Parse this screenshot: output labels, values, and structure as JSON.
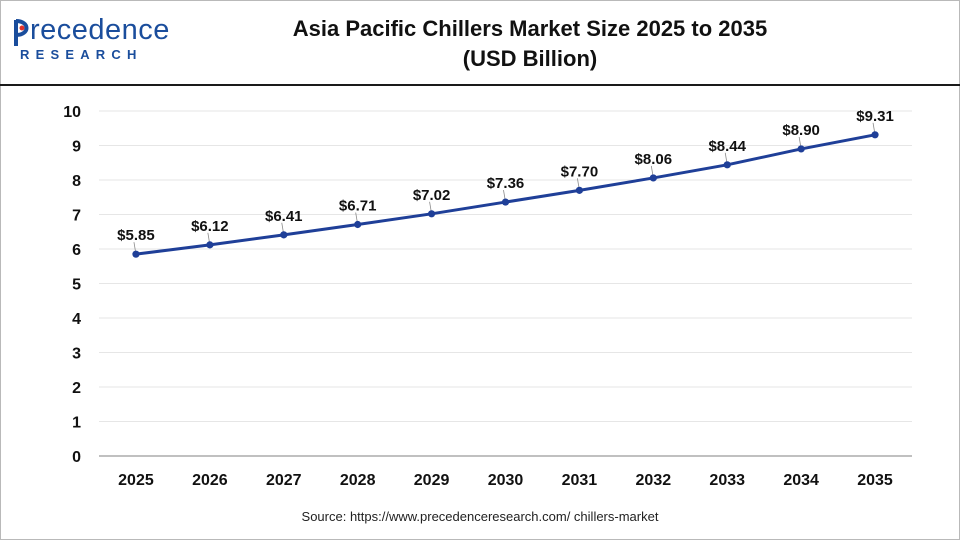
{
  "logo": {
    "word": "recedence",
    "sub": "RESEARCH"
  },
  "title": {
    "line1": "Asia Pacific Chillers Market Size 2025 to 2035",
    "line2": "(USD Billion)"
  },
  "source": "Source: https://www.precedenceresearch.com/ chillers-market",
  "colors": {
    "line": "#1f3f98",
    "brand": "#1a4d9c",
    "grid": "#e6e6e6"
  },
  "chart_data": {
    "type": "line",
    "title": "Asia Pacific Chillers Market Size 2025 to 2035 (USD Billion)",
    "categories": [
      "2025",
      "2026",
      "2027",
      "2028",
      "2029",
      "2030",
      "2031",
      "2032",
      "2033",
      "2034",
      "2035"
    ],
    "values": [
      5.85,
      6.12,
      6.41,
      6.71,
      7.02,
      7.36,
      7.7,
      8.06,
      8.44,
      8.9,
      9.31
    ],
    "data_labels": [
      "$5.85",
      "$6.12",
      "$6.41",
      "$6.71",
      "$7.02",
      "$7.36",
      "$7.70",
      "$8.06",
      "$8.44",
      "$8.90",
      "$9.31"
    ],
    "ylim": [
      0,
      10
    ],
    "yticks": [
      0,
      1,
      2,
      3,
      4,
      5,
      6,
      7,
      8,
      9,
      10
    ],
    "xlabel": "",
    "ylabel": "",
    "grid": true,
    "legend": "none"
  }
}
